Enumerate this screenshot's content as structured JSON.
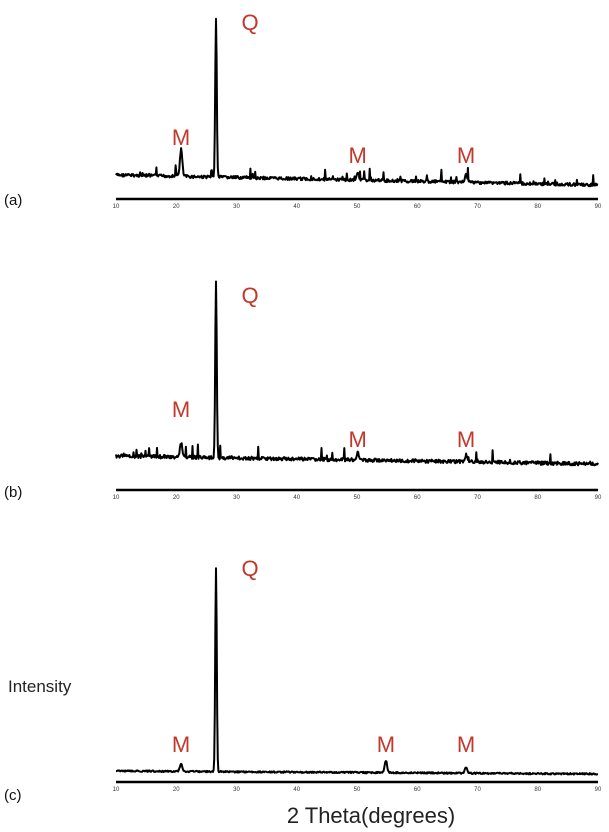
{
  "chart_data": {
    "type": "line",
    "xlabel": "2 Theta(degrees)",
    "ylabel": "Intensity",
    "xlim": [
      10,
      90
    ],
    "x_tick_labels": [
      "10",
      "20",
      "30",
      "40",
      "50",
      "60",
      "70",
      "80",
      "90"
    ],
    "panels": [
      {
        "label": "(a)",
        "peaks": [
          {
            "label": "M",
            "x": 20.8,
            "rel_intensity": 0.17
          },
          {
            "label": "Q",
            "x": 26.6,
            "rel_intensity": 1.0
          },
          {
            "label": "M",
            "x": 50.1,
            "rel_intensity": 0.05
          },
          {
            "label": "M",
            "x": 68.1,
            "rel_intensity": 0.05
          }
        ]
      },
      {
        "label": "(b)",
        "peaks": [
          {
            "label": "M",
            "x": 20.8,
            "rel_intensity": 0.08
          },
          {
            "label": "Q",
            "x": 26.6,
            "rel_intensity": 1.0
          },
          {
            "label": "M",
            "x": 50.1,
            "rel_intensity": 0.04
          },
          {
            "label": "M",
            "x": 68.1,
            "rel_intensity": 0.04
          }
        ]
      },
      {
        "label": "(c)",
        "peaks": [
          {
            "label": "M",
            "x": 20.8,
            "rel_intensity": 0.04
          },
          {
            "label": "Q",
            "x": 26.6,
            "rel_intensity": 1.0
          },
          {
            "label": "M",
            "x": 54.8,
            "rel_intensity": 0.06
          },
          {
            "label": "M",
            "x": 68.1,
            "rel_intensity": 0.03
          }
        ]
      }
    ]
  }
}
